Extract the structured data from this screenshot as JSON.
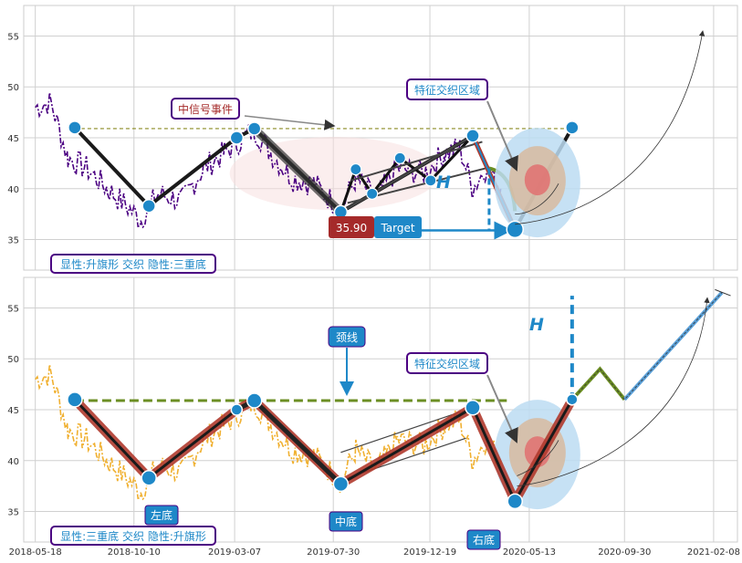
{
  "chart_data": [
    {
      "type": "line",
      "panel": "top",
      "title": "",
      "xlabel": "",
      "ylabel": "",
      "x_range": [
        "2018-05-01",
        "2021-03-15"
      ],
      "ylim": [
        32,
        58
      ],
      "yticks": [
        35,
        40,
        45,
        50,
        55
      ],
      "grid": true,
      "price_color": "#4b0082",
      "anchor_prices": [
        [
          "2018-05-18",
          48
        ],
        [
          "2018-06-10",
          48.5
        ],
        [
          "2018-07-05",
          43
        ],
        [
          "2018-08-01",
          42
        ],
        [
          "2018-09-01",
          40
        ],
        [
          "2018-10-20",
          37
        ],
        [
          "2018-11-15",
          39.5
        ],
        [
          "2018-12-20",
          38.8
        ],
        [
          "2019-01-20",
          42
        ],
        [
          "2019-02-20",
          43.5
        ],
        [
          "2019-03-10",
          44.5
        ],
        [
          "2019-04-05",
          45.8
        ],
        [
          "2019-05-05",
          43
        ],
        [
          "2019-06-01",
          41
        ],
        [
          "2019-07-01",
          40.5
        ],
        [
          "2019-08-10",
          38
        ],
        [
          "2019-09-01",
          41
        ],
        [
          "2019-10-01",
          39
        ],
        [
          "2019-11-01",
          42
        ],
        [
          "2019-12-10",
          41.5
        ],
        [
          "2020-01-10",
          43.5
        ],
        [
          "2020-02-01",
          44
        ],
        [
          "2020-02-20",
          40
        ],
        [
          "2020-03-10",
          42
        ],
        [
          "2020-04-01",
          40
        ]
      ],
      "pattern_points": [
        [
          "2018-07-15",
          46
        ],
        [
          "2018-11-01",
          38.3
        ],
        [
          "2019-03-10",
          45
        ],
        [
          "2019-04-05",
          45.9
        ],
        [
          "2019-08-10",
          37.7
        ],
        [
          "2020-02-20",
          45.2
        ],
        [
          "2020-04-22",
          36
        ],
        [
          "2020-07-15",
          46
        ]
      ],
      "flag_points": [
        [
          "2019-09-01",
          41.9
        ],
        [
          "2019-09-25",
          39.5
        ],
        [
          "2019-11-05",
          43
        ],
        [
          "2019-12-20",
          40.8
        ]
      ],
      "neckline_value": 45.9,
      "target_value": 35.9,
      "target_text": "35.90",
      "target_label": "Target",
      "h_label": "H",
      "annotations": [
        {
          "text": "中信号事件"
        },
        {
          "text": "特征交织区域"
        }
      ],
      "legend_text": "显性:升旗形 交织 隐性:三重底"
    },
    {
      "type": "line",
      "panel": "bottom",
      "title": "",
      "xlabel": "",
      "ylabel": "",
      "x_range": [
        "2018-05-01",
        "2021-03-15"
      ],
      "ylim": [
        32,
        58
      ],
      "yticks": [
        35,
        40,
        45,
        50,
        55
      ],
      "xticks": [
        "2018-05-18",
        "2018-10-10",
        "2019-03-07",
        "2019-07-30",
        "2019-12-19",
        "2020-05-13",
        "2020-09-30",
        "2021-02-08"
      ],
      "grid": true,
      "price_color": "#f0b030",
      "pattern_points": [
        [
          "2018-07-15",
          46
        ],
        [
          "2018-11-01",
          38.3
        ],
        [
          "2019-03-10",
          45
        ],
        [
          "2019-04-05",
          45.9
        ],
        [
          "2019-08-10",
          37.7
        ],
        [
          "2020-02-20",
          45.2
        ],
        [
          "2020-04-22",
          36
        ],
        [
          "2020-07-15",
          46
        ]
      ],
      "projection_points": [
        [
          "2020-07-15",
          46
        ],
        [
          "2020-08-25",
          49
        ],
        [
          "2020-09-30",
          46
        ],
        [
          "2021-02-20",
          56.5
        ]
      ],
      "neckline_value": 45.9,
      "h_label": "H",
      "annotations": [
        {
          "text": "颈线"
        },
        {
          "text": "特征交织区域"
        },
        {
          "text": "左底"
        },
        {
          "text": "中底"
        },
        {
          "text": "右底"
        }
      ],
      "legend_text": "显性:三重底 交织 隐性:升旗形"
    }
  ],
  "colors": {
    "grid": "#d0d0d0",
    "pattern_dot": "#1e88c8",
    "pattern_line": "#1a1a1a",
    "neckline_top": "#8a8a20",
    "neckline_bottom": "#6b8e23",
    "red_band": "#b03a2e",
    "target_box": "#a52a2a",
    "label_blue": "#1e88c8",
    "label_border": "#4b0082",
    "label_text_red": "#a52a2a"
  }
}
